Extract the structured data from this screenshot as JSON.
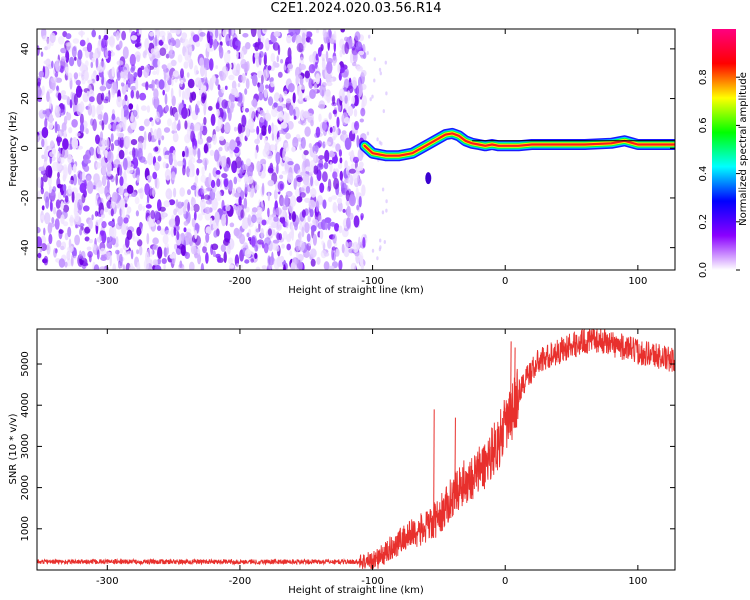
{
  "title": "C2E1.2024.020.03.56.R14",
  "chart_data": [
    {
      "type": "heatmap",
      "xlabel": "Height of straight line (km)",
      "ylabel": "Frequency (Hz)",
      "xlim": [
        -353,
        128
      ],
      "ylim": [
        -49,
        48
      ],
      "x_ticks": [
        -300,
        -200,
        -100,
        0,
        100
      ],
      "y_ticks": [
        -40,
        -20,
        0,
        20,
        40
      ],
      "colorbar": {
        "label": "Normalized spectral amplitude",
        "range": [
          0,
          1
        ],
        "ticks": [
          0.0,
          0.2,
          0.4,
          0.6,
          0.8
        ],
        "stops": [
          "#ffffff",
          "#8a00ff",
          "#0000ff",
          "#00ffff",
          "#00ff00",
          "#ffff00",
          "#ff0000",
          "#ff0080"
        ]
      },
      "noise_region_x": [
        -353,
        -106
      ],
      "ridge_x": [
        -106,
        -100,
        -90,
        -80,
        -70,
        -60,
        -50,
        -45,
        -40,
        -35,
        -30,
        -25,
        -20,
        -15,
        -10,
        -5,
        0,
        10,
        20,
        40,
        60,
        80,
        90,
        100,
        110,
        128
      ],
      "ridge_freq": [
        1,
        -2,
        -3,
        -3,
        -2,
        1,
        4,
        5.5,
        6,
        5,
        3,
        2,
        1.5,
        1,
        1.5,
        1,
        1,
        1,
        1.5,
        1.5,
        1.5,
        2,
        3,
        1.5,
        1.5,
        1.5
      ],
      "detached_blob": {
        "x": -58,
        "freq": -12
      }
    },
    {
      "type": "line",
      "xlabel": "Height of straight line (km)",
      "ylabel": "SNR (10 * v/v)",
      "xlim": [
        -353,
        128
      ],
      "ylim": [
        0,
        5850
      ],
      "x_ticks": [
        -300,
        -200,
        -100,
        0,
        100
      ],
      "y_ticks": [
        1000,
        2000,
        3000,
        4000,
        5000
      ],
      "color": "#e8302d",
      "series": [
        {
          "x": [
            -353,
            -300,
            -250,
            -200,
            -150,
            -110,
            -100,
            -95,
            -90,
            -85,
            -80,
            -70,
            -60,
            -55,
            -50,
            -45,
            -40,
            -35,
            -30,
            -25,
            -20,
            -15,
            -10,
            -5,
            0,
            5,
            10,
            15,
            20,
            25,
            30,
            40,
            50,
            60,
            70,
            80,
            90,
            100,
            110,
            120,
            128
          ],
          "y": [
            200,
            200,
            200,
            200,
            200,
            200,
            230,
            300,
            420,
            560,
            700,
            900,
            1000,
            1150,
            1300,
            1500,
            1800,
            2000,
            2150,
            2250,
            2400,
            2550,
            2900,
            3100,
            3500,
            3800,
            4300,
            4600,
            4850,
            5050,
            5150,
            5300,
            5450,
            5550,
            5600,
            5500,
            5400,
            5300,
            5250,
            5150,
            5050
          ]
        }
      ],
      "spikes": [
        {
          "x": -54,
          "y": 3900
        },
        {
          "x": 4,
          "y": 5550
        },
        {
          "x": 7,
          "y": 5400
        },
        {
          "x": -38,
          "y": 3700
        }
      ]
    }
  ]
}
